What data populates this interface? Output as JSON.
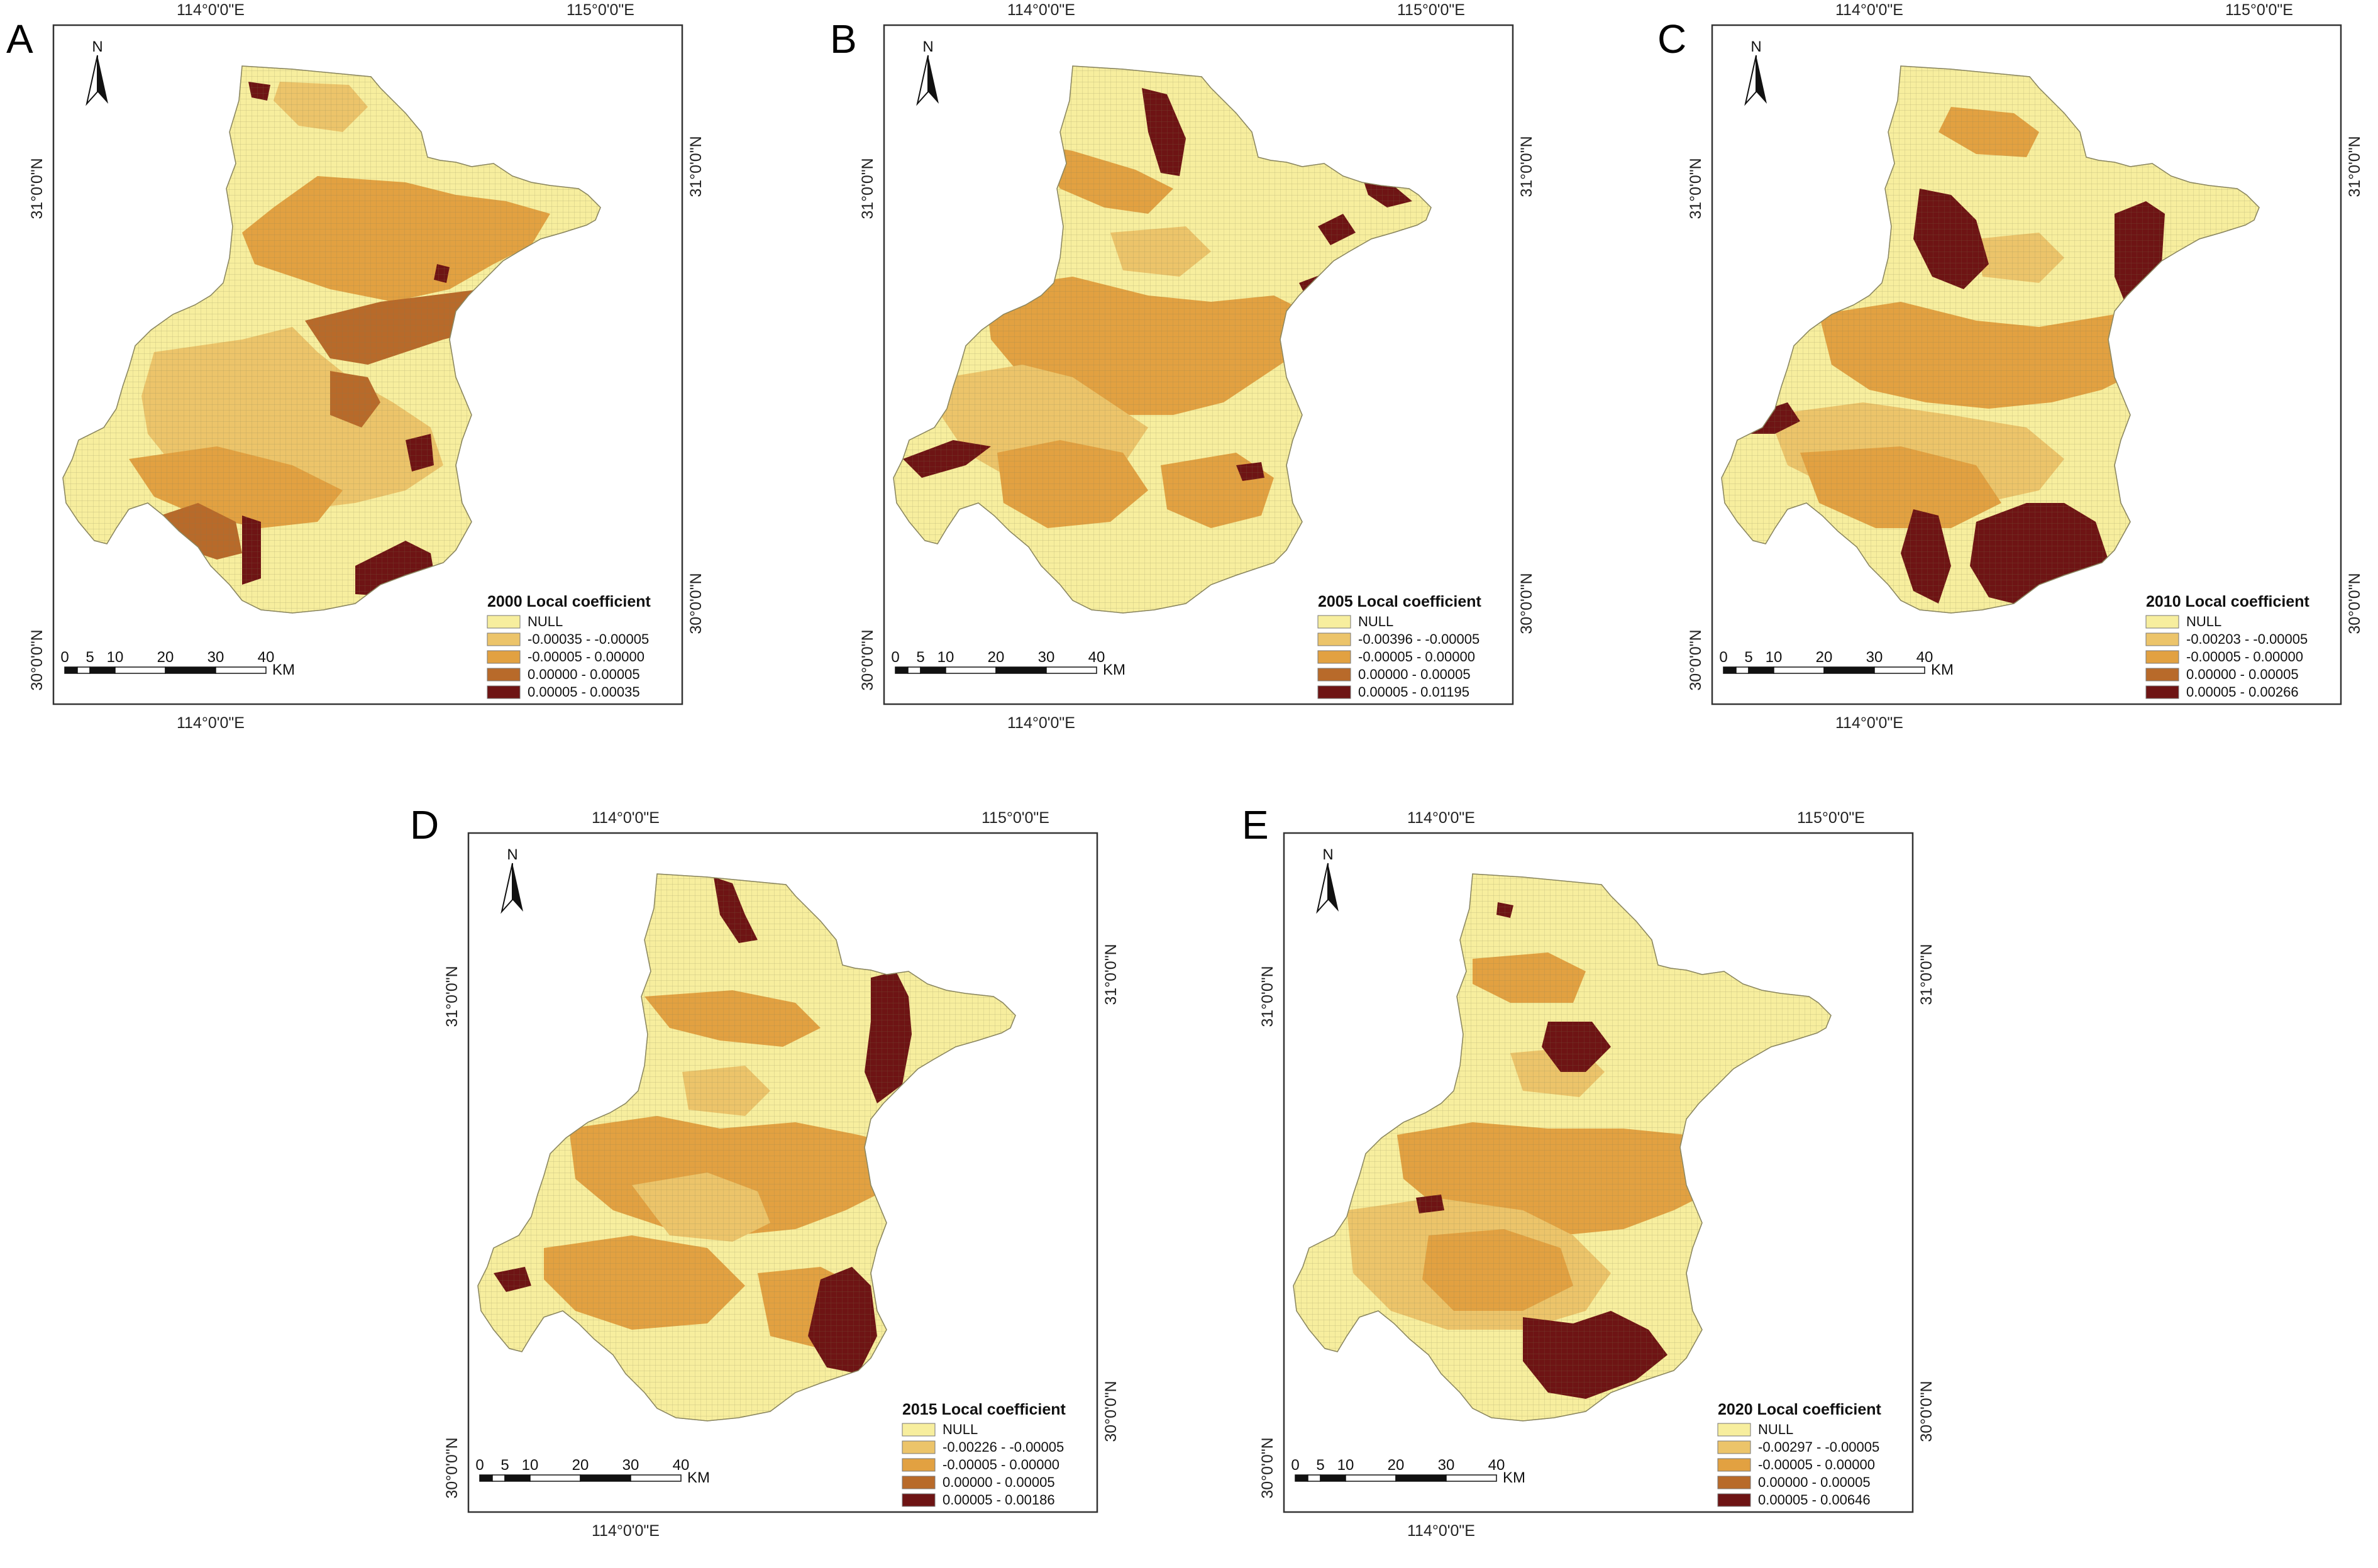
{
  "figure": {
    "colors": {
      "null": "#f7ee9e",
      "class1": "#ecc46a",
      "class2": "#e2a141",
      "class3": "#b86a2a",
      "class4": "#6e1414",
      "frame": "#333333",
      "grid": "#7a7a52"
    },
    "north_label": "N",
    "scale": {
      "ticks": [
        "0",
        "5",
        "10",
        "20",
        "30",
        "40"
      ],
      "unit": "KM"
    },
    "coords": {
      "lon_a": "114°0'0\"E",
      "lon_b": "115°0'0\"E",
      "lat_a": "31°0'0\"N",
      "lat_b": "30°0'0\"N"
    },
    "panels": [
      {
        "id": "A",
        "label": "A",
        "legend_title": "2000 Local coefficient",
        "classes": [
          "NULL",
          "-0.00035 - -0.00005",
          "-0.00005 -  0.00000",
          "0.00000 -  0.00005",
          "0.00005 -  0.00035"
        ]
      },
      {
        "id": "B",
        "label": "B",
        "legend_title": "2005 Local coefficient",
        "classes": [
          "NULL",
          "-0.00396 - -0.00005",
          "-0.00005 -  0.00000",
          "0.00000 -  0.00005",
          "0.00005 -  0.01195"
        ]
      },
      {
        "id": "C",
        "label": "C",
        "legend_title": "2010 Local coefficient",
        "classes": [
          "NULL",
          "-0.00203 - -0.00005",
          "-0.00005 -  0.00000",
          "0.00000 -  0.00005",
          "0.00005 -  0.00266"
        ]
      },
      {
        "id": "D",
        "label": "D",
        "legend_title": "2015 Local coefficient",
        "classes": [
          "NULL",
          "-0.00226 - -0.00005",
          "-0.00005 -  0.00000",
          "0.00000 -  0.00005",
          "0.00005 -  0.00186"
        ]
      },
      {
        "id": "E",
        "label": "E",
        "legend_title": "2020 Local coefficient",
        "classes": [
          "NULL",
          "-0.00297 - -0.00005",
          "-0.00005 -  0.00000",
          "0.00000 -  0.00005",
          "0.00005 -  0.00646"
        ]
      }
    ]
  }
}
